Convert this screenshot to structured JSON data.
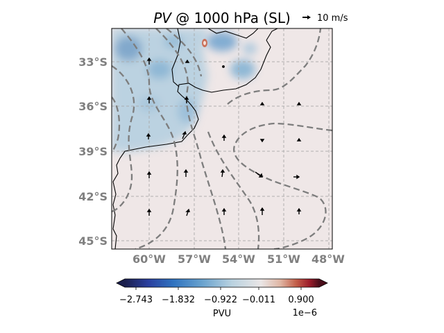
{
  "title": {
    "variable": "PV",
    "rest": " @ 1000 hPa (SL)"
  },
  "quiver_key": {
    "label": "10 m/s"
  },
  "latitude_ticks": [
    "33°S",
    "36°S",
    "39°S",
    "42°S",
    "45°S"
  ],
  "longitude_ticks": [
    "60°W",
    "57°W",
    "54°W",
    "51°W",
    "48°W"
  ],
  "colorbar": {
    "ticks": [
      "−2.743",
      "−1.832",
      "−0.922",
      "−0.011",
      "0.900"
    ],
    "label": "PVU",
    "exponent": "1e−6",
    "colors": [
      "#1b1f4d",
      "#2a3f9e",
      "#2f73c0",
      "#6aa3cf",
      "#b9d2e0",
      "#eae6e6",
      "#e0b6a4",
      "#c4604a",
      "#9c1c2a",
      "#4a0d1a"
    ]
  },
  "chart_data": {
    "type": "heatmap",
    "map_extent": {
      "lon": [
        -62.5,
        -47.7
      ],
      "lat": [
        -45.6,
        -31.0
      ]
    },
    "contours": "dashed gray",
    "vectors": "wind (black arrows)",
    "gridlines": true
  }
}
